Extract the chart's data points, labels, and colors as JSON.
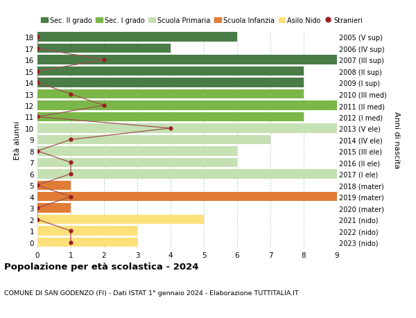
{
  "ages": [
    18,
    17,
    16,
    15,
    14,
    13,
    12,
    11,
    10,
    9,
    8,
    7,
    6,
    5,
    4,
    3,
    2,
    1,
    0
  ],
  "years": [
    "2005 (V sup)",
    "2006 (IV sup)",
    "2007 (III sup)",
    "2008 (II sup)",
    "2009 (I sup)",
    "2010 (III med)",
    "2011 (II med)",
    "2012 (I med)",
    "2013 (V ele)",
    "2014 (IV ele)",
    "2015 (III ele)",
    "2016 (II ele)",
    "2017 (I ele)",
    "2018 (mater)",
    "2019 (mater)",
    "2020 (mater)",
    "2021 (nido)",
    "2022 (nido)",
    "2023 (nido)"
  ],
  "bar_values": [
    6,
    4,
    9,
    8,
    8,
    8,
    9,
    8,
    9,
    7,
    6,
    6,
    9,
    1,
    9,
    1,
    5,
    3,
    3
  ],
  "bar_colors": [
    "#4a7c47",
    "#4a7c47",
    "#4a7c47",
    "#4a7c47",
    "#4a7c47",
    "#7ab648",
    "#7ab648",
    "#7ab648",
    "#c5e0b3",
    "#c5e0b3",
    "#c5e0b3",
    "#c5e0b3",
    "#c5e0b3",
    "#e07c35",
    "#e07c35",
    "#e07c35",
    "#fce07a",
    "#fce07a",
    "#fce07a"
  ],
  "stranieri_values": [
    0,
    0,
    2,
    0,
    0,
    1,
    2,
    0,
    4,
    1,
    0,
    1,
    1,
    0,
    1,
    0,
    0,
    1,
    1
  ],
  "legend_labels": [
    "Sec. II grado",
    "Sec. I grado",
    "Scuola Primaria",
    "Scuola Infanzia",
    "Asilo Nido",
    "Stranieri"
  ],
  "legend_colors": [
    "#4a7c47",
    "#7ab648",
    "#c5e0b3",
    "#e07c35",
    "#fce07a",
    "#9b2020"
  ],
  "stranieri_color": "#9b2020",
  "stranieri_line_color": "#a05050",
  "title": "Popolazione per età scolastica - 2024",
  "subtitle": "COMUNE DI SAN GODENZO (FI) - Dati ISTAT 1° gennaio 2024 - Elaborazione TUTTITALIA.IT",
  "ylabel_left": "Età alunni",
  "ylabel_right": "Anni di nascita",
  "xlim": [
    0,
    9
  ],
  "background_color": "#ffffff",
  "grid_color": "#cccccc"
}
